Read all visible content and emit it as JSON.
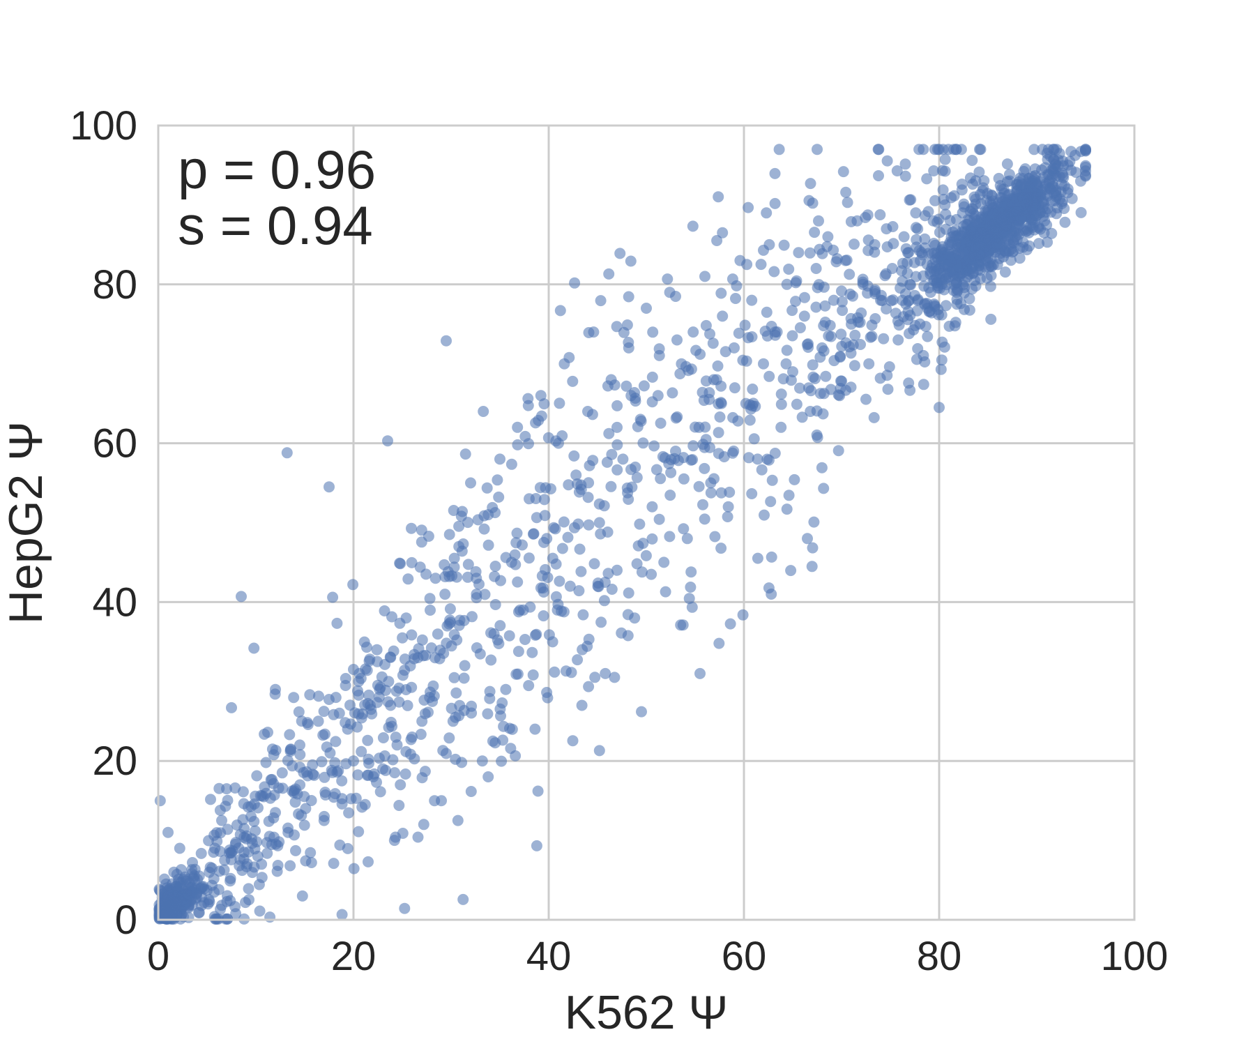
{
  "chart_data": {
    "type": "scatter",
    "title": "",
    "xlabel": "K562 Ψ",
    "ylabel": "HepG2 Ψ",
    "xlim": [
      0,
      100
    ],
    "ylim": [
      0,
      100
    ],
    "xticks": [
      "0",
      "20",
      "40",
      "60",
      "80",
      "100"
    ],
    "yticks": [
      "0",
      "20",
      "40",
      "60",
      "80",
      "100"
    ],
    "grid": true,
    "point_color": "#4c72b0",
    "point_alpha": 0.55,
    "grid_color": "#cccccc",
    "annotations": [
      "p = 0.96",
      "s = 0.94"
    ],
    "approx_point_count": 2200,
    "series": [
      {
        "points": [
          [
            0.5,
            1.0
          ],
          [
            1.2,
            2.1
          ],
          [
            2.0,
            0.8
          ],
          [
            2.6,
            3.2
          ],
          [
            3.1,
            1.5
          ],
          [
            3.8,
            2.6
          ],
          [
            4.2,
            0.9
          ],
          [
            0.8,
            4.5
          ],
          [
            1.6,
            6.0
          ],
          [
            2.9,
            5.1
          ],
          [
            4.6,
            4.2
          ],
          [
            5.1,
            2.0
          ],
          [
            5.5,
            6.5
          ],
          [
            6.2,
            3.8
          ],
          [
            6.8,
            7.5
          ],
          [
            7.4,
            5.2
          ],
          [
            7.9,
            9.5
          ],
          [
            8.3,
            6.8
          ],
          [
            2.2,
            9.0
          ],
          [
            3.5,
            7.2
          ],
          [
            1.0,
            11.0
          ],
          [
            0.2,
            15.0
          ],
          [
            5.8,
            9.0
          ],
          [
            6.5,
            12.5
          ],
          [
            7.0,
            16.5
          ],
          [
            8.8,
            11.5
          ],
          [
            9.5,
            13.0
          ],
          [
            10.2,
            8.0
          ],
          [
            10.8,
            15.5
          ],
          [
            11.4,
            10.5
          ],
          [
            12.0,
            13.5
          ],
          [
            12.7,
            18.5
          ],
          [
            13.3,
            11.0
          ],
          [
            13.9,
            16.0
          ],
          [
            14.5,
            22.0
          ],
          [
            15.1,
            14.0
          ],
          [
            15.8,
            19.5
          ],
          [
            16.4,
            25.0
          ],
          [
            17.0,
            13.0
          ],
          [
            17.6,
            21.0
          ],
          [
            18.2,
            28.0
          ],
          [
            18.8,
            17.5
          ],
          [
            19.4,
            24.0
          ],
          [
            20.0,
            20.0
          ],
          [
            20.6,
            31.0
          ],
          [
            21.2,
            14.5
          ],
          [
            21.8,
            26.5
          ],
          [
            22.4,
            34.0
          ],
          [
            23.0,
            19.0
          ],
          [
            23.6,
            30.0
          ],
          [
            24.2,
            10.0
          ],
          [
            24.8,
            17.0
          ],
          [
            25.4,
            38.0
          ],
          [
            26.0,
            23.0
          ],
          [
            26.6,
            33.0
          ],
          [
            27.2,
            12.0
          ],
          [
            27.8,
            28.0
          ],
          [
            28.4,
            43.0
          ],
          [
            29.0,
            15.0
          ],
          [
            29.6,
            37.0
          ],
          [
            30.2,
            25.0
          ],
          [
            30.8,
            47.0
          ],
          [
            31.4,
            32.0
          ],
          [
            32.0,
            55.0
          ],
          [
            32.6,
            41.0
          ],
          [
            33.2,
            20.0
          ],
          [
            33.8,
            51.0
          ],
          [
            34.4,
            36.0
          ],
          [
            35.0,
            58.0
          ],
          [
            35.6,
            29.0
          ],
          [
            36.2,
            45.0
          ],
          [
            36.8,
            62.0
          ],
          [
            37.4,
            39.0
          ],
          [
            38.0,
            53.0
          ],
          [
            38.6,
            24.0
          ],
          [
            39.2,
            66.0
          ],
          [
            39.8,
            48.0
          ],
          [
            40.4,
            35.0
          ],
          [
            41.0,
            60.0
          ],
          [
            41.6,
            70.0
          ],
          [
            42.2,
            42.0
          ],
          [
            42.8,
            56.0
          ],
          [
            43.4,
            27.0
          ],
          [
            44.0,
            64.0
          ],
          [
            44.6,
            74.0
          ],
          [
            45.2,
            50.0
          ],
          [
            45.8,
            31.0
          ],
          [
            46.4,
            68.0
          ],
          [
            47.0,
            44.0
          ],
          [
            47.6,
            58.0
          ],
          [
            48.2,
            72.0
          ],
          [
            48.8,
            38.0
          ],
          [
            49.4,
            63.0
          ],
          [
            50.0,
            77.0
          ],
          [
            50.6,
            52.0
          ],
          [
            51.2,
            66.0
          ],
          [
            51.8,
            45.0
          ],
          [
            52.4,
            79.0
          ],
          [
            53.0,
            59.0
          ],
          [
            53.6,
            70.0
          ],
          [
            54.2,
            48.0
          ],
          [
            54.8,
            74.0
          ],
          [
            55.4,
            62.0
          ],
          [
            56.0,
            81.0
          ],
          [
            56.6,
            55.0
          ],
          [
            57.2,
            68.0
          ],
          [
            57.8,
            76.0
          ],
          [
            58.4,
            52.0
          ],
          [
            59.0,
            72.0
          ],
          [
            59.6,
            83.0
          ],
          [
            60.2,
            65.0
          ],
          [
            60.8,
            78.0
          ],
          [
            61.4,
            58.0
          ],
          [
            62.0,
            70.0
          ],
          [
            62.6,
            85.0
          ],
          [
            63.2,
            74.0
          ],
          [
            63.8,
            62.0
          ],
          [
            64.4,
            80.0
          ],
          [
            65.0,
            69.0
          ],
          [
            65.6,
            84.0
          ],
          [
            66.2,
            76.0
          ],
          [
            66.8,
            64.0
          ],
          [
            67.4,
            82.0
          ],
          [
            68.0,
            72.0
          ],
          [
            68.6,
            86.0
          ],
          [
            69.2,
            78.0
          ],
          [
            69.8,
            66.0
          ],
          [
            70.4,
            83.0
          ],
          [
            71.0,
            75.0
          ],
          [
            71.6,
            88.0
          ],
          [
            72.2,
            80.0
          ],
          [
            72.8,
            70.0
          ],
          [
            73.4,
            85.0
          ],
          [
            74.0,
            78.0
          ],
          [
            74.6,
            87.0
          ],
          [
            75.2,
            82.0
          ],
          [
            75.8,
            73.0
          ],
          [
            76.4,
            86.0
          ],
          [
            77.0,
            80.0
          ],
          [
            77.6,
            89.0
          ],
          [
            78.2,
            84.0
          ],
          [
            78.8,
            77.0
          ],
          [
            79.4,
            88.0
          ],
          [
            80.0,
            82.0
          ],
          [
            80.6,
            90.0
          ],
          [
            81.2,
            85.0
          ],
          [
            81.8,
            79.0
          ],
          [
            82.4,
            89.0
          ],
          [
            83.0,
            86.0
          ],
          [
            83.6,
            91.0
          ],
          [
            84.2,
            87.0
          ],
          [
            84.8,
            83.0
          ],
          [
            85.4,
            90.0
          ],
          [
            86.0,
            88.0
          ],
          [
            86.6,
            92.0
          ],
          [
            87.2,
            89.0
          ],
          [
            87.8,
            86.0
          ],
          [
            88.4,
            91.0
          ],
          [
            89.0,
            89.0
          ],
          [
            89.6,
            93.0
          ],
          [
            90.2,
            90.0
          ],
          [
            90.8,
            88.0
          ],
          [
            91.4,
            92.0
          ],
          [
            92.0,
            91.0
          ],
          [
            92.6,
            94.0
          ],
          [
            93.2,
            92.0
          ],
          [
            94.5,
            93.0
          ],
          [
            91.2,
            97.0
          ],
          [
            70.2,
            94.2
          ],
          [
            13.2,
            58.8
          ],
          [
            17.5,
            54.5
          ],
          [
            8.5,
            40.7
          ],
          [
            23.5,
            60.3
          ],
          [
            29.5,
            72.9
          ],
          [
            55.5,
            31.0
          ],
          [
            45.2,
            21.3
          ],
          [
            38.9,
            16.2
          ],
          [
            62.8,
            41.0
          ],
          [
            66.5,
            48.0
          ],
          [
            80.0,
            64.5
          ],
          [
            85.3,
            75.6
          ],
          [
            49.5,
            26.2
          ],
          [
            36.0,
            24.1
          ],
          [
            47.3,
            83.9
          ],
          [
            57.8,
            86.5
          ],
          [
            62.3,
            89.0
          ],
          [
            41.2,
            76.7
          ],
          [
            33.3,
            64.0
          ],
          [
            80.2,
            69.3
          ],
          [
            21.5,
            7.3
          ],
          [
            10.4,
            1.1
          ],
          [
            15.7,
            7.2
          ],
          [
            18.6,
            9.4
          ],
          [
            24.3,
            10.4
          ],
          [
            30.7,
            12.5
          ],
          [
            28.3,
            15.0
          ],
          [
            33.8,
            18.0
          ],
          [
            7.5,
            26.7
          ],
          [
            9.8,
            34.2
          ],
          [
            12.0,
            29.0
          ]
        ]
      }
    ]
  }
}
